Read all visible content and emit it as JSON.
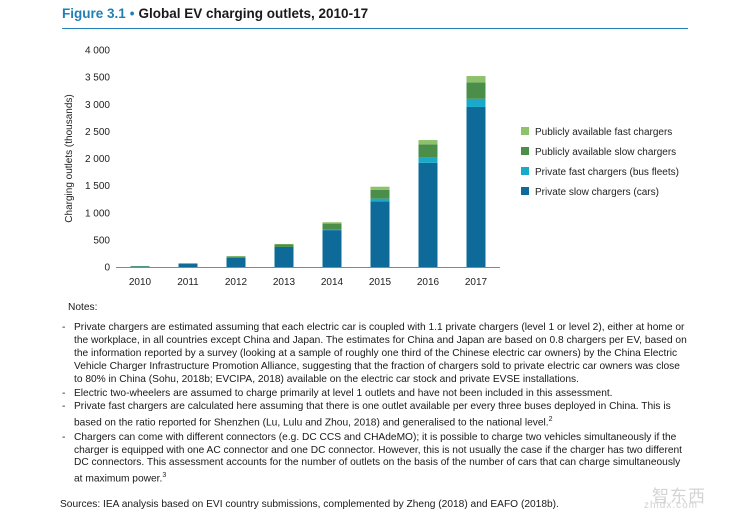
{
  "header": {
    "figure_label": "Figure 3.1",
    "separator": "•",
    "title": "Global EV charging outlets, 2010-17"
  },
  "chart_data": {
    "type": "bar",
    "stacked": true,
    "title": "Global EV charging outlets, 2010-17",
    "xlabel": "",
    "ylabel": "Charging outlets (thousands)",
    "ylim": [
      0,
      4000
    ],
    "yticks": [
      0,
      500,
      1000,
      1500,
      2000,
      2500,
      3000,
      3500,
      4000
    ],
    "ytick_labels": [
      "0",
      "500",
      "1 000",
      "1 500",
      "2 000",
      "2 500",
      "3 000",
      "3 500",
      "4 000"
    ],
    "categories": [
      "2010",
      "2011",
      "2012",
      "2013",
      "2014",
      "2015",
      "2016",
      "2017"
    ],
    "series": [
      {
        "name": "Private slow chargers (cars)",
        "color": "#0e6b99",
        "values": [
          10,
          55,
          170,
          370,
          680,
          1210,
          1920,
          2950
        ]
      },
      {
        "name": "Private fast chargers (bus fleets)",
        "color": "#19aacb",
        "values": [
          0,
          0,
          0,
          0,
          20,
          50,
          100,
          150
        ]
      },
      {
        "name": "Publicly available slow chargers",
        "color": "#4a8e4a",
        "values": [
          5,
          12,
          25,
          45,
          100,
          160,
          240,
          300
        ]
      },
      {
        "name": "Publicly available fast chargers",
        "color": "#8dc16b",
        "values": [
          0,
          0,
          5,
          10,
          25,
          60,
          80,
          120
        ]
      }
    ],
    "legend_order": [
      "Publicly available fast chargers",
      "Publicly available slow chargers",
      "Private fast chargers (bus fleets)",
      "Private slow chargers (cars)"
    ],
    "legend_position": "right"
  },
  "notes": {
    "heading": "Notes:",
    "items": [
      "Private chargers are estimated assuming that each electric car is coupled with 1.1 private chargers (level 1 or level 2), either at home or the workplace, in all countries except China and Japan. The estimates for China and Japan are based on 0.8 chargers per EV, based on the information reported by a survey (looking at a sample of roughly one third of the Chinese electric car owners) by the China Electric Vehicle Charger Infrastructure Promotion Alliance, suggesting that the fraction of chargers sold to private electric car owners was close to 80% in China (Sohu, 2018b; EVCIPA, 2018) available on the electric car stock and private EVSE installations.",
      "Electric two-wheelers are assumed to charge primarily at level 1 outlets and have not been included in this assessment.",
      "Private fast chargers are calculated here assuming that there is one outlet available per every three buses deployed in China. This is based on the ratio reported for Shenzhen (Lu, Lulu and Zhou, 2018) and generalised to the national level.",
      "Chargers can come with different connectors (e.g. DC CCS and CHAdeMO); it is possible to charge two vehicles simultaneously if the charger is equipped with one AC connector and one DC connector. However, this is not usually the case if the charger has two different DC connectors. This assessment accounts for the number of outlets on the basis of the number of cars that can charge simultaneously at maximum power."
    ],
    "footnote_marks": {
      "item2": "2",
      "item3": "3"
    }
  },
  "sources": "Sources: IEA analysis based on EVI country submissions, complemented by Zheng (2018) and EAFO (2018b).",
  "watermark": {
    "text": "智东西",
    "sub": "zhidx.com"
  }
}
